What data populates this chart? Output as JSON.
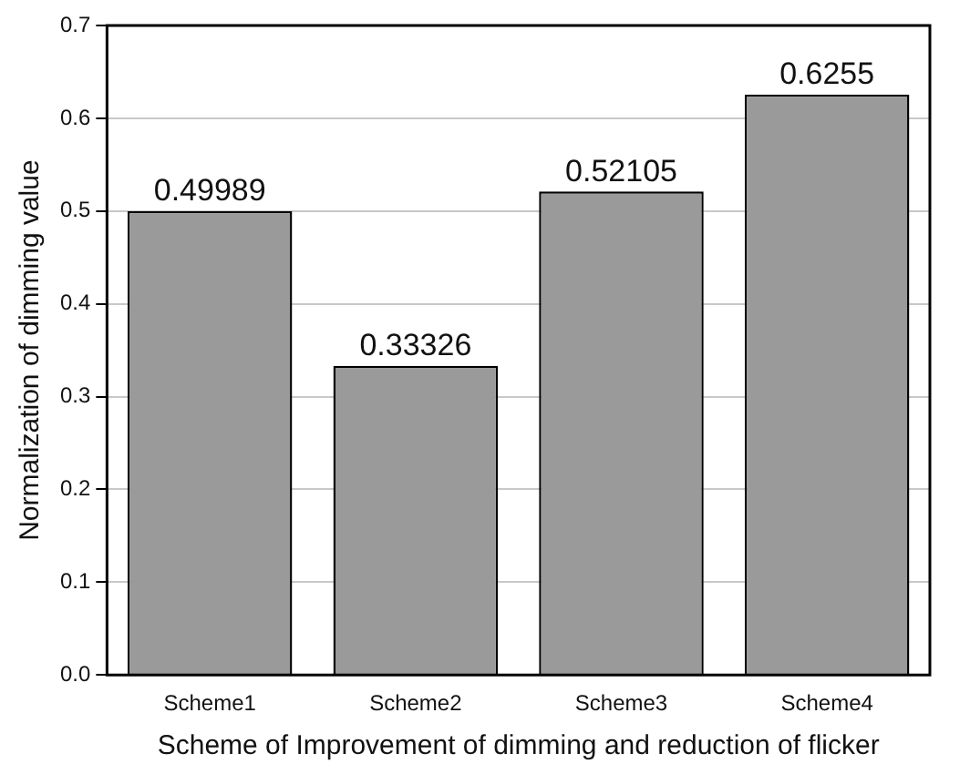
{
  "chart_data": {
    "type": "bar",
    "xlabel": "Scheme of Improvement of dimming and reduction of flicker",
    "ylabel": "Normalization of dimming value",
    "categories": [
      "Scheme1",
      "Scheme2",
      "Scheme3",
      "Scheme4"
    ],
    "values": [
      0.49989,
      0.33326,
      0.52105,
      0.6255
    ],
    "color": "#9a9a9a",
    "ylim": [
      0,
      0.7
    ],
    "yticks": [
      {
        "value": 0,
        "label": "0.0"
      },
      0.1,
      0.2,
      0.3,
      0.4,
      0.5,
      0.6,
      0.7
    ],
    "grid": "y",
    "data_labels": true
  }
}
